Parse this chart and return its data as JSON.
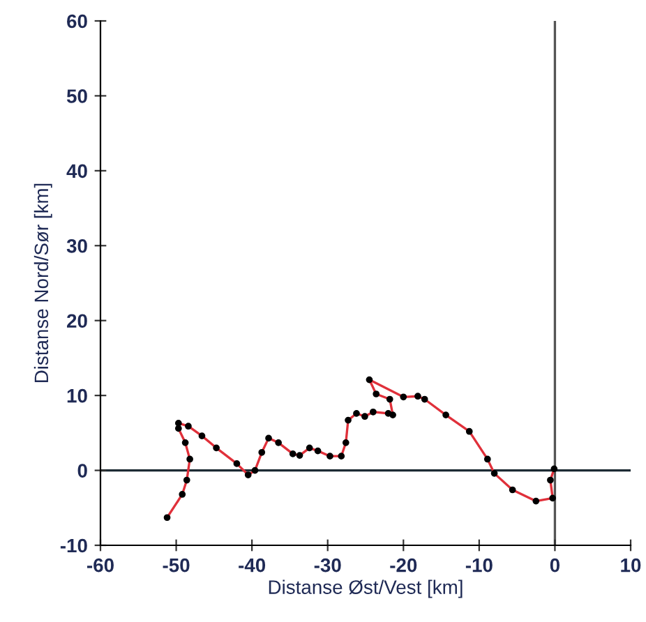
{
  "chart_data": {
    "type": "line",
    "xlabel": "Distanse Øst/Vest [km]",
    "ylabel": "Distanse Nord/Sør [km]",
    "series": [
      {
        "color": "#e0303a",
        "x": [
          -51.2,
          -49.2,
          -48.6,
          -48.2,
          -48.8,
          -49.7,
          -49.7,
          -48.4,
          -46.6,
          -44.7,
          -42.0,
          -40.5,
          -39.6,
          -38.7,
          -37.8,
          -36.5,
          -34.6,
          -33.7,
          -32.4,
          -31.3,
          -29.7,
          -28.2,
          -27.6,
          -27.3,
          -26.2,
          -25.1,
          -24.0,
          -22.0,
          -21.4,
          -21.8,
          -23.6,
          -24.5,
          -20.0,
          -18.1,
          -17.2,
          -14.4,
          -11.3,
          -8.9,
          -8.0,
          -5.6,
          -2.5,
          -0.3,
          -0.6,
          -0.1
        ],
        "values": [
          -6.3,
          -3.2,
          -1.3,
          1.5,
          3.7,
          5.6,
          6.3,
          5.9,
          4.6,
          3.0,
          0.9,
          -0.6,
          0.0,
          2.4,
          4.3,
          3.7,
          2.2,
          2.0,
          3.0,
          2.6,
          1.9,
          1.9,
          3.7,
          6.7,
          7.6,
          7.2,
          7.8,
          7.6,
          7.4,
          9.5,
          10.2,
          12.1,
          9.8,
          9.9,
          9.5,
          7.4,
          5.2,
          1.5,
          -0.4,
          -2.6,
          -4.1,
          -3.7,
          -1.3,
          0.2
        ]
      }
    ],
    "marker": "circle",
    "line_style": "solid",
    "xlim": [
      -60,
      10
    ],
    "xticks": [
      -60,
      -50,
      -40,
      -30,
      -20,
      -10,
      0,
      10
    ],
    "ylim": [
      -10,
      60
    ],
    "yticks": [
      -10,
      0,
      10,
      20,
      30,
      40,
      50,
      60
    ],
    "ref_lines": [
      {
        "axis": "y",
        "value": 0,
        "color": "#1c2a33"
      },
      {
        "axis": "x",
        "value": 0,
        "color": "#555555"
      }
    ],
    "grid": false,
    "legend": false
  }
}
